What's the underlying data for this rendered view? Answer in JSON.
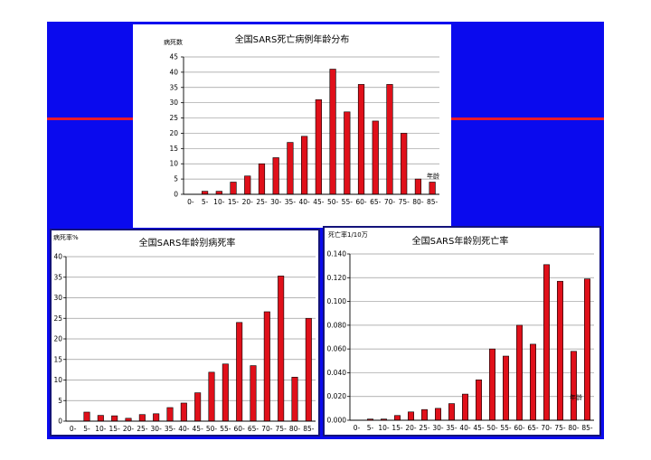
{
  "colors": {
    "slide_bg": "#0a0aee",
    "slide_line": "#e81a2c",
    "bar": "#e0101a",
    "bar_edge": "#000000",
    "grid": "#9a9a9a",
    "axis": "#000000"
  },
  "chart_data": [
    {
      "type": "bar",
      "title": "全国SARS死亡病例年龄分布",
      "ylabel": "病死数",
      "xlabel": "年龄",
      "categories": [
        "0-",
        "5-",
        "10-",
        "15-",
        "20-",
        "25-",
        "30-",
        "35-",
        "40-",
        "45-",
        "50-",
        "55-",
        "60-",
        "65-",
        "70-",
        "75-",
        "80-",
        "85-"
      ],
      "values": [
        0,
        1,
        1,
        4,
        6,
        10,
        12,
        17,
        19,
        31,
        41,
        27,
        36,
        24,
        36,
        20,
        5,
        4
      ],
      "ylim": [
        0,
        45
      ],
      "yticks": [
        "0",
        "5",
        "10",
        "15",
        "20",
        "25",
        "30",
        "35",
        "40",
        "45"
      ],
      "grid": true
    },
    {
      "type": "bar",
      "title": "全国SARS年龄别病死率",
      "ylabel": "病死率%",
      "xlabel": "",
      "categories": [
        "0-",
        "5-",
        "10-",
        "15-",
        "20-",
        "25-",
        "30-",
        "35-",
        "40-",
        "45-",
        "50-",
        "55-",
        "60-",
        "65-",
        "70-",
        "75-",
        "80-",
        "85-"
      ],
      "values": [
        0,
        2.2,
        1.4,
        1.3,
        0.7,
        1.6,
        1.8,
        3.3,
        4.4,
        6.9,
        11.9,
        13.9,
        24.0,
        13.5,
        26.6,
        35.3,
        10.7,
        25.0
      ],
      "ylim": [
        0,
        40
      ],
      "yticks": [
        "0",
        "5",
        "10",
        "15",
        "20",
        "25",
        "30",
        "35",
        "40"
      ],
      "grid": true
    },
    {
      "type": "bar",
      "title": "全国SARS年龄别死亡率",
      "ylabel": "死亡率1/10万",
      "xlabel": "年龄",
      "categories": [
        "0-",
        "5-",
        "10-",
        "15-",
        "20-",
        "25-",
        "30-",
        "35-",
        "40-",
        "45-",
        "50-",
        "55-",
        "60-",
        "65-",
        "70-",
        "75-",
        "80-",
        "85-"
      ],
      "values": [
        0,
        0.001,
        0.001,
        0.004,
        0.007,
        0.009,
        0.01,
        0.014,
        0.022,
        0.034,
        0.06,
        0.054,
        0.08,
        0.064,
        0.131,
        0.117,
        0.058,
        0.119
      ],
      "ylim": [
        0,
        0.14
      ],
      "yticks": [
        "0.000",
        "0.020",
        "0.040",
        "0.060",
        "0.080",
        "0.100",
        "0.120",
        "0.140"
      ],
      "grid": true
    }
  ]
}
